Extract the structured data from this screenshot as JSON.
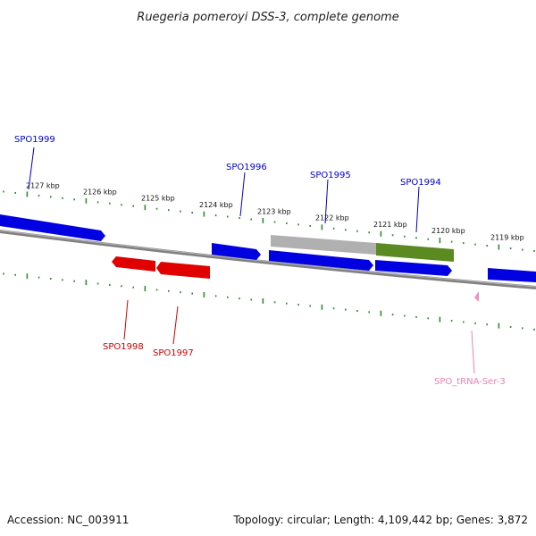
{
  "title": "Ruegeria pomeroyi DSS-3, complete genome",
  "footer": {
    "accession": "Accession: NC_003911",
    "topology": "Topology: circular; Length: 4,109,442 bp; Genes: 3,872"
  },
  "colors": {
    "tick_outer": "#2e8b2e",
    "tick_inner": "#2e8b2e",
    "backbone": "#808080",
    "forward_gene": "#0000e0",
    "reverse_gene": "#e00000",
    "grey_feature": "#b0b0b0",
    "green_feature": "#5a8a20",
    "trna": "#f090c0",
    "label_blue": "#0000cc",
    "label_red": "#cc0000",
    "label_pink": "#f080b0"
  },
  "ticks": [
    {
      "label": "2127 kbp"
    },
    {
      "label": "2126 kbp"
    },
    {
      "label": "2125 kbp"
    },
    {
      "label": "2124 kbp"
    },
    {
      "label": "2123 kbp"
    },
    {
      "label": "2122 kbp"
    },
    {
      "label": "2121 kbp"
    },
    {
      "label": "2120 kbp"
    },
    {
      "label": "2119 kbp"
    }
  ],
  "features": {
    "forward_a": {
      "color": "forward_gene"
    },
    "forward_b": {
      "color": "forward_gene"
    },
    "forward_c": {
      "color": "forward_gene"
    },
    "forward_d": {
      "color": "forward_gene"
    },
    "forward_e": {
      "color": "forward_gene"
    },
    "grey_top": {
      "color": "grey_feature"
    },
    "green_top": {
      "color": "green_feature"
    },
    "reverse_a": {
      "color": "reverse_gene"
    },
    "reverse_b": {
      "color": "reverse_gene"
    },
    "trna": {
      "color": "trna"
    }
  },
  "labels": [
    {
      "text": "SPO1999",
      "color": "label_blue"
    },
    {
      "text": "SPO1996",
      "color": "label_blue"
    },
    {
      "text": "SPO1995",
      "color": "label_blue"
    },
    {
      "text": "SPO1994",
      "color": "label_blue"
    },
    {
      "text": "SPO1998",
      "color": "label_red"
    },
    {
      "text": "SPO1997",
      "color": "label_red"
    },
    {
      "text": "SPO_tRNA-Ser-3",
      "color": "label_pink"
    }
  ]
}
